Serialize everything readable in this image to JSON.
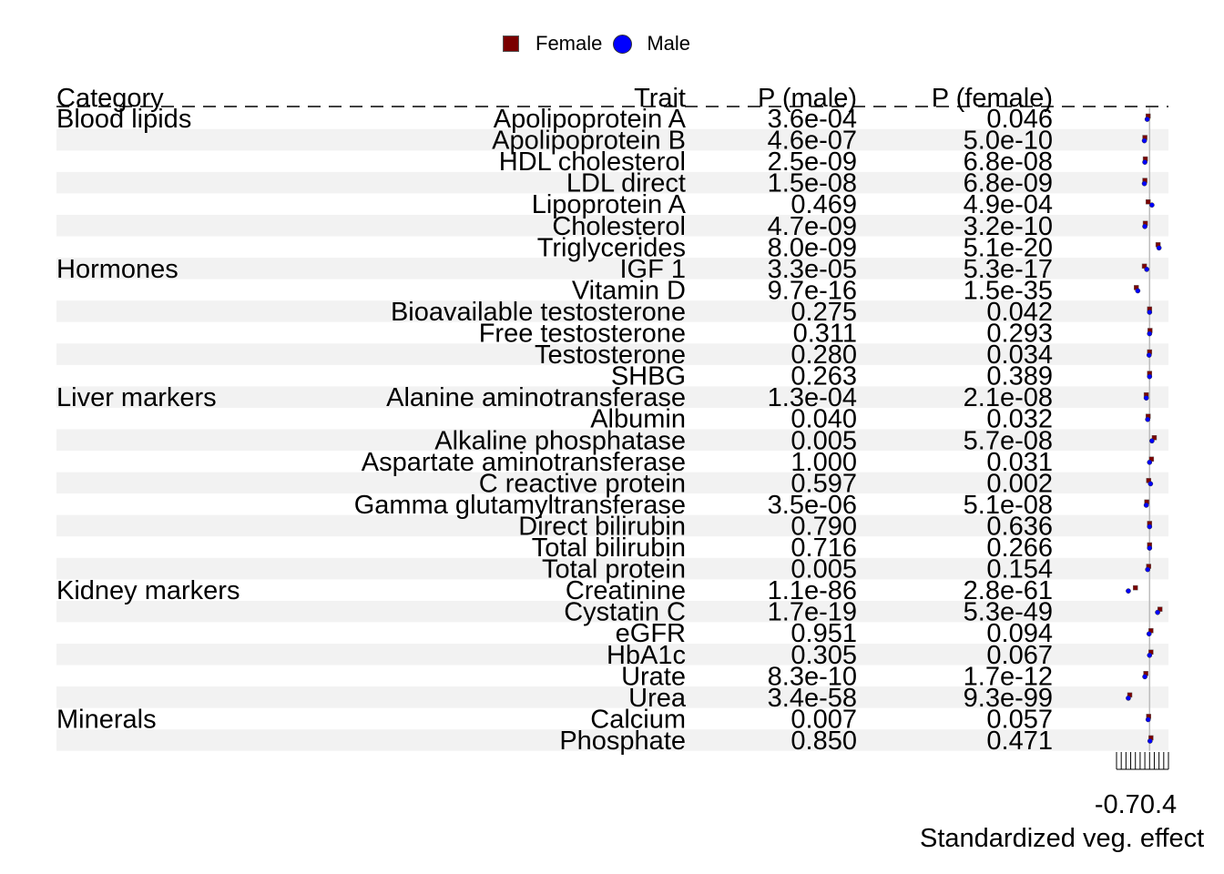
{
  "legend": [
    {
      "label": "Female",
      "color": "#7a0000",
      "shape": "square"
    },
    {
      "label": "Male",
      "color": "#0000ff",
      "shape": "circle"
    }
  ],
  "chart_data": {
    "type": "forest",
    "columns": {
      "category": "Category",
      "trait": "Trait",
      "p_male": "P (male)",
      "p_female": "P (female)"
    },
    "xlabel": "Standardized veg. effect",
    "x_tick_label": "-0.70.4",
    "xlim": [
      -0.7,
      0.4
    ],
    "reference_line": 0,
    "series": [
      {
        "name": "Female"
      },
      {
        "name": "Male"
      }
    ],
    "rows": [
      {
        "category": "Blood lipids",
        "trait": "Apolipoprotein A",
        "p_male": "3.6e-04",
        "p_female": "0.046",
        "male": -0.05,
        "female": -0.03
      },
      {
        "category": "",
        "trait": "Apolipoprotein B",
        "p_male": "4.6e-07",
        "p_female": "5.0e-10",
        "male": -0.11,
        "female": -0.1
      },
      {
        "category": "",
        "trait": "HDL cholesterol",
        "p_male": "2.5e-09",
        "p_female": "6.8e-08",
        "male": -0.1,
        "female": -0.09
      },
      {
        "category": "",
        "trait": "LDL direct",
        "p_male": "1.5e-08",
        "p_female": "6.8e-09",
        "male": -0.11,
        "female": -0.1
      },
      {
        "category": "",
        "trait": "Lipoprotein A",
        "p_male": "0.469",
        "p_female": "4.9e-04",
        "male": 0.05,
        "female": -0.03
      },
      {
        "category": "",
        "trait": "Cholesterol",
        "p_male": "4.7e-09",
        "p_female": "3.2e-10",
        "male": -0.1,
        "female": -0.09
      },
      {
        "category": "",
        "trait": "Triglycerides",
        "p_male": "8.0e-09",
        "p_female": "5.1e-20",
        "male": 0.2,
        "female": 0.18
      },
      {
        "category": "Hormones",
        "trait": "IGF 1",
        "p_male": "3.3e-05",
        "p_female": "5.3e-17",
        "male": -0.06,
        "female": -0.11
      },
      {
        "category": "",
        "trait": "Vitamin D",
        "p_male": "9.7e-16",
        "p_female": "1.5e-35",
        "male": -0.25,
        "female": -0.28
      },
      {
        "category": "",
        "trait": "Bioavailable testosterone",
        "p_male": "0.275",
        "p_female": "0.042",
        "male": 0.0,
        "female": 0.0
      },
      {
        "category": "",
        "trait": "Free testosterone",
        "p_male": "0.311",
        "p_female": "0.293",
        "male": 0.0,
        "female": 0.01
      },
      {
        "category": "",
        "trait": "Testosterone",
        "p_male": "0.280",
        "p_female": "0.034",
        "male": -0.01,
        "female": 0.0
      },
      {
        "category": "",
        "trait": "SHBG",
        "p_male": "0.263",
        "p_female": "0.389",
        "male": 0.0,
        "female": 0.0
      },
      {
        "category": "Liver markers",
        "trait": "Alanine aminotransferase",
        "p_male": "1.3e-04",
        "p_female": "2.1e-08",
        "male": -0.07,
        "female": -0.07
      },
      {
        "category": "",
        "trait": "Albumin",
        "p_male": "0.040",
        "p_female": "0.032",
        "male": -0.04,
        "female": -0.03
      },
      {
        "category": "",
        "trait": "Alkaline phosphatase",
        "p_male": "0.005",
        "p_female": "5.7e-08",
        "male": 0.05,
        "female": 0.1
      },
      {
        "category": "",
        "trait": "Aspartate aminotransferase",
        "p_male": "1.000",
        "p_female": "0.031",
        "male": 0.0,
        "female": 0.04
      },
      {
        "category": "",
        "trait": "C reactive protein",
        "p_male": "0.597",
        "p_female": "0.002",
        "male": 0.02,
        "female": -0.02
      },
      {
        "category": "",
        "trait": "Gamma glutamyltransferase",
        "p_male": "3.5e-06",
        "p_female": "5.1e-08",
        "male": -0.07,
        "female": -0.06
      },
      {
        "category": "",
        "trait": "Direct bilirubin",
        "p_male": "0.790",
        "p_female": "0.636",
        "male": 0.0,
        "female": 0.0
      },
      {
        "category": "",
        "trait": "Total bilirubin",
        "p_male": "0.716",
        "p_female": "0.266",
        "male": 0.0,
        "female": 0.0
      },
      {
        "category": "",
        "trait": "Total protein",
        "p_male": "0.005",
        "p_female": "0.154",
        "male": -0.04,
        "female": -0.02
      },
      {
        "category": "Kidney markers",
        "trait": "Creatinine",
        "p_male": "1.1e-86",
        "p_female": "2.8e-61",
        "male": -0.45,
        "female": -0.3
      },
      {
        "category": "",
        "trait": "Cystatin C",
        "p_male": "1.7e-19",
        "p_female": "5.3e-49",
        "male": 0.17,
        "female": 0.22
      },
      {
        "category": "",
        "trait": "eGFR",
        "p_male": "0.951",
        "p_female": "0.094",
        "male": -0.01,
        "female": 0.03
      },
      {
        "category": "",
        "trait": "HbA1c",
        "p_male": "0.305",
        "p_female": "0.067",
        "male": 0.0,
        "female": 0.03
      },
      {
        "category": "",
        "trait": "Urate",
        "p_male": "8.3e-10",
        "p_female": "1.7e-12",
        "male": -0.1,
        "female": -0.08
      },
      {
        "category": "",
        "trait": "Urea",
        "p_male": "3.4e-58",
        "p_female": "9.3e-99",
        "male": -0.45,
        "female": -0.42
      },
      {
        "category": "Minerals",
        "trait": "Calcium",
        "p_male": "0.007",
        "p_female": "0.057",
        "male": -0.03,
        "female": -0.02
      },
      {
        "category": "",
        "trait": "Phosphate",
        "p_male": "0.850",
        "p_female": "0.471",
        "male": 0.01,
        "female": 0.03
      }
    ]
  }
}
